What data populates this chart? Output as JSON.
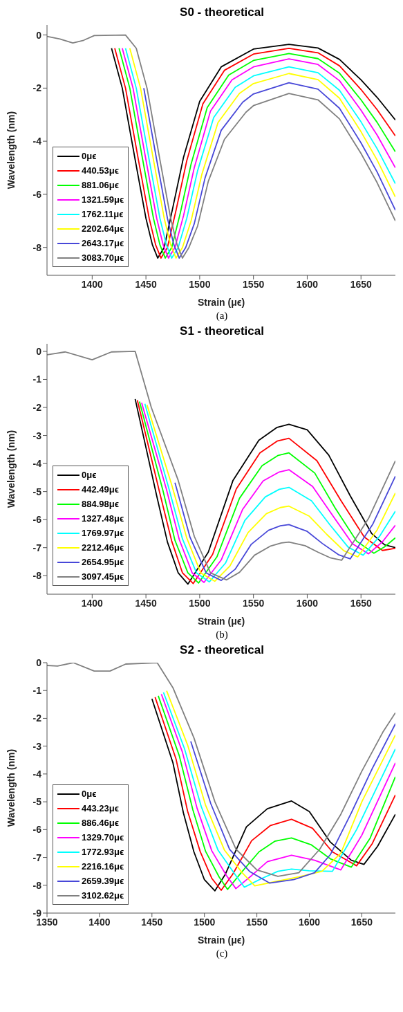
{
  "chart_data": [
    {
      "type": "line",
      "title": "S0 - theoretical",
      "xlabel": "Strain (μϵ)",
      "ylabel": "Wavelength (nm)",
      "annotations": [
        "(a)"
      ],
      "legend": "bottom left",
      "xlim": [
        1358,
        1682
      ],
      "xticks": [
        1400,
        1450,
        1500,
        1550,
        1600,
        1650
      ],
      "ylim": [
        -9.05,
        0.38
      ],
      "yticks": [
        -8,
        -6,
        -4,
        -2,
        0
      ],
      "series": [
        {
          "name": "0μϵ",
          "color": "#000000",
          "x": [
            1418,
            1428,
            1440,
            1450,
            1456,
            1461,
            1467,
            1475,
            1485,
            1500,
            1520,
            1550,
            1583,
            1610,
            1630,
            1650,
            1665,
            1682
          ],
          "values": [
            -0.5,
            -2,
            -4.7,
            -6.9,
            -7.9,
            -8.4,
            -8,
            -6.5,
            -4.6,
            -2.5,
            -1.2,
            -0.53,
            -0.35,
            -0.49,
            -0.92,
            -1.69,
            -2.35,
            -3.2
          ]
        },
        {
          "name": "440.53μϵ",
          "color": "#ff0000",
          "x": [
            1421,
            1431,
            1443,
            1453,
            1459,
            1464,
            1470,
            1478,
            1488,
            1503,
            1523,
            1550,
            1583,
            1610,
            1630,
            1650,
            1665,
            1682
          ],
          "values": [
            -0.5,
            -2,
            -4.7,
            -6.9,
            -7.9,
            -8.4,
            -8,
            -6.6,
            -4.73,
            -2.59,
            -1.33,
            -0.72,
            -0.5,
            -0.67,
            -1.16,
            -2.05,
            -2.81,
            -3.8
          ]
        },
        {
          "name": "881.06μϵ",
          "color": "#00ff00",
          "x": [
            1425,
            1435,
            1447,
            1457,
            1463,
            1468,
            1474,
            1482,
            1492,
            1507,
            1527,
            1550,
            1583,
            1610,
            1630,
            1650,
            1665,
            1682
          ],
          "values": [
            -0.5,
            -2,
            -4.7,
            -6.9,
            -7.9,
            -8.4,
            -8,
            -6.7,
            -4.86,
            -2.73,
            -1.51,
            -0.96,
            -0.7,
            -0.89,
            -1.44,
            -2.44,
            -3.29,
            -4.4
          ]
        },
        {
          "name": "1321.59μϵ",
          "color": "#ff00ff",
          "x": [
            1428,
            1438,
            1450,
            1460,
            1466,
            1471,
            1477,
            1485,
            1495,
            1510,
            1530,
            1550,
            1583,
            1610,
            1630,
            1650,
            1665,
            1682
          ],
          "values": [
            -0.5,
            -2,
            -4.7,
            -6.9,
            -7.9,
            -8.4,
            -8,
            -6.8,
            -4.99,
            -2.87,
            -1.69,
            -1.2,
            -0.9,
            -1.11,
            -1.72,
            -2.83,
            -3.77,
            -5
          ]
        },
        {
          "name": "1762.11μϵ",
          "color": "#00ffff",
          "x": [
            1431,
            1441,
            1453,
            1463,
            1469,
            1474,
            1480,
            1488,
            1498,
            1513,
            1533,
            1550,
            1583,
            1610,
            1630,
            1650,
            1665,
            1682
          ],
          "values": [
            -0.5,
            -2,
            -4.7,
            -6.9,
            -7.9,
            -8.4,
            -8,
            -6.9,
            -5.12,
            -3.11,
            -1.97,
            -1.54,
            -1.2,
            -1.42,
            -2.08,
            -3.27,
            -4.28,
            -5.6
          ]
        },
        {
          "name": "2202.64μϵ",
          "color": "#ffff00",
          "x": [
            1435,
            1445,
            1457,
            1467,
            1473,
            1478,
            1484,
            1492,
            1502,
            1517,
            1537,
            1550,
            1583,
            1610,
            1630,
            1650,
            1665,
            1682
          ],
          "values": [
            -0.5,
            -2,
            -4.7,
            -6.9,
            -7.9,
            -8.4,
            -8,
            -7,
            -5.25,
            -3.3,
            -2.2,
            -1.83,
            -1.45,
            -1.68,
            -2.38,
            -3.64,
            -4.71,
            -6.1
          ]
        },
        {
          "name": "2643.17μϵ",
          "color": "#4848d8",
          "x": [
            1448,
            1460,
            1470,
            1476,
            1481,
            1487,
            1495,
            1505,
            1520,
            1540,
            1550,
            1583,
            1610,
            1630,
            1650,
            1665,
            1682
          ],
          "values": [
            -2,
            -4.7,
            -6.9,
            -7.9,
            -8.4,
            -8,
            -7.1,
            -5.38,
            -3.59,
            -2.53,
            -2.22,
            -1.8,
            -2.04,
            -2.76,
            -4.06,
            -5.16,
            -6.6
          ]
        },
        {
          "name": "3083.70μϵ",
          "color": "#808080",
          "x": [
            1358,
            1370,
            1382,
            1392,
            1402,
            1431,
            1441,
            1451,
            1463,
            1473,
            1479,
            1484,
            1490,
            1498,
            1508,
            1523,
            1543,
            1550,
            1583,
            1610,
            1630,
            1650,
            1665,
            1682
          ],
          "values": [
            -0.05,
            -0.15,
            -0.3,
            -0.2,
            -0.02,
            0,
            -0.5,
            -2,
            -4.7,
            -6.9,
            -7.9,
            -8.4,
            -8,
            -7.2,
            -5.51,
            -3.93,
            -2.91,
            -2.66,
            -2.2,
            -2.44,
            -3.16,
            -4.46,
            -5.56,
            -7
          ]
        }
      ]
    },
    {
      "type": "line",
      "title": "S1 - theoretical",
      "xlabel": "Strain (μϵ)",
      "ylabel": "Wavelength (nm)",
      "annotations": [
        "(b)"
      ],
      "legend": "bottom left",
      "xlim": [
        1358,
        1682
      ],
      "xticks": [
        1400,
        1450,
        1500,
        1550,
        1600,
        1650
      ],
      "ylim": [
        -8.66,
        0.27
      ],
      "yticks": [
        -8,
        -7,
        -6,
        -5,
        -4,
        -3,
        -2,
        -1,
        0
      ],
      "series": [
        {
          "name": "0μϵ",
          "color": "#000000",
          "x": [
            1440,
            1460,
            1470,
            1480,
            1489,
            1508,
            1531,
            1555,
            1572,
            1583,
            1600,
            1620,
            1640,
            1660,
            1672,
            1682
          ],
          "values": [
            -1.7,
            -5.15,
            -6.8,
            -7.9,
            -8.3,
            -7.16,
            -4.6,
            -3.17,
            -2.71,
            -2.6,
            -2.8,
            -3.7,
            -5.15,
            -6.5,
            -6.9,
            -7
          ]
        },
        {
          "name": "442.49μϵ",
          "color": "#ff0000",
          "x": [
            1442,
            1463,
            1474,
            1484,
            1494,
            1512,
            1534,
            1556,
            1572,
            1583,
            1609,
            1631,
            1653,
            1670,
            1682
          ],
          "values": [
            -1.74,
            -5.07,
            -6.77,
            -7.9,
            -8.28,
            -7.24,
            -4.91,
            -3.62,
            -3.2,
            -3.1,
            -3.9,
            -5.3,
            -6.62,
            -7.1,
            -7.02
          ]
        },
        {
          "name": "884.98μϵ",
          "color": "#00ff00",
          "x": [
            1444,
            1466,
            1477,
            1489,
            1499,
            1516,
            1537,
            1558,
            1573,
            1583,
            1607,
            1626,
            1646,
            1662,
            1672,
            1682
          ],
          "values": [
            -1.79,
            -4.99,
            -6.74,
            -7.9,
            -8.26,
            -7.33,
            -5.24,
            -4.08,
            -3.71,
            -3.62,
            -4.34,
            -5.59,
            -6.77,
            -7.2,
            -6.97,
            -6.65
          ]
        },
        {
          "name": "1327.48μϵ",
          "color": "#ff00ff",
          "x": [
            1446,
            1469,
            1481,
            1493,
            1504,
            1520,
            1540,
            1559,
            1574,
            1583,
            1605,
            1624,
            1642,
            1657,
            1670,
            1682
          ],
          "values": [
            -1.83,
            -4.91,
            -6.71,
            -7.9,
            -8.24,
            -7.44,
            -5.63,
            -4.62,
            -4.3,
            -4.22,
            -4.82,
            -5.87,
            -6.86,
            -7.22,
            -6.79,
            -6.2
          ]
        },
        {
          "name": "1769.97μϵ",
          "color": "#00ffff",
          "x": [
            1449,
            1471,
            1484,
            1497,
            1509,
            1524,
            1542,
            1561,
            1574,
            1583,
            1604,
            1621,
            1638,
            1652,
            1667,
            1682
          ],
          "values": [
            -1.87,
            -4.84,
            -6.69,
            -7.9,
            -8.22,
            -7.55,
            -6.03,
            -5.19,
            -4.92,
            -4.85,
            -5.33,
            -6.18,
            -6.98,
            -7.27,
            -6.61,
            -5.7
          ]
        },
        {
          "name": "2212.46μϵ",
          "color": "#ffff00",
          "x": [
            1451,
            1474,
            1488,
            1501,
            1514,
            1528,
            1545,
            1562,
            1575,
            1583,
            1602,
            1618,
            1634,
            1647,
            1665,
            1682
          ],
          "values": [
            -1.91,
            -4.76,
            -6.66,
            -7.9,
            -8.2,
            -7.66,
            -6.46,
            -5.79,
            -5.57,
            -5.52,
            -5.88,
            -6.52,
            -7.11,
            -7.33,
            -6.37,
            -5.05
          ]
        },
        {
          "name": "2654.95μϵ",
          "color": "#4848d8",
          "x": [
            1477,
            1491,
            1506,
            1520,
            1533,
            1548,
            1564,
            1575,
            1583,
            1600,
            1614,
            1629,
            1640,
            1661,
            1682
          ],
          "values": [
            -4.68,
            -6.63,
            -7.9,
            -8.17,
            -7.77,
            -6.88,
            -6.38,
            -6.22,
            -6.18,
            -6.42,
            -6.85,
            -7.25,
            -7.4,
            -6.16,
            -4.45
          ]
        },
        {
          "name": "3097.45μϵ",
          "color": "#808080",
          "x": [
            1358,
            1375,
            1400,
            1418,
            1440,
            1455,
            1480,
            1495,
            1510,
            1525,
            1537,
            1551,
            1566,
            1576,
            1583,
            1598,
            1610,
            1622,
            1632,
            1657,
            1682
          ],
          "values": [
            -0.12,
            -0.02,
            -0.3,
            -0.02,
            0,
            -2,
            -4.6,
            -6.6,
            -7.9,
            -8.15,
            -7.88,
            -7.27,
            -6.94,
            -6.83,
            -6.8,
            -6.93,
            -7.16,
            -7.37,
            -7.45,
            -5.96,
            -3.9
          ]
        }
      ]
    },
    {
      "type": "line",
      "title": "S2 - theoretical",
      "xlabel": "Strain (μϵ)",
      "ylabel": "Wavelength (nm)",
      "annotations": [
        "(c)"
      ],
      "legend": "bottom left",
      "xlim": [
        1350,
        1682
      ],
      "xticks": [
        1350,
        1400,
        1450,
        1500,
        1550,
        1600,
        1650
      ],
      "ylim": [
        -9,
        0
      ],
      "yticks": [
        -9,
        -8,
        -7,
        -6,
        -5,
        -4,
        -3,
        -2,
        -1,
        0
      ],
      "series": [
        {
          "name": "0μϵ",
          "color": "#000000",
          "x": [
            1450,
            1470,
            1480,
            1490,
            1500,
            1510,
            1520,
            1540,
            1560,
            1583,
            1600,
            1620,
            1640,
            1652,
            1665,
            1682
          ],
          "values": [
            -1.3,
            -3.6,
            -5.4,
            -6.8,
            -7.8,
            -8.2,
            -7.6,
            -5.9,
            -5.25,
            -4.97,
            -5.35,
            -6.45,
            -7.1,
            -7.25,
            -6.6,
            -5.45
          ]
        },
        {
          "name": "443.23μϵ",
          "color": "#ff0000",
          "x": [
            1453,
            1473,
            1484,
            1496,
            1507,
            1516,
            1527,
            1545,
            1563,
            1583,
            1603,
            1622,
            1645,
            1660,
            1682
          ],
          "values": [
            -1.24,
            -3.47,
            -5.34,
            -6.79,
            -7.75,
            -8.18,
            -7.6,
            -6.4,
            -5.85,
            -5.63,
            -5.95,
            -6.8,
            -7.3,
            -6.5,
            -4.75
          ]
        },
        {
          "name": "886.46μϵ",
          "color": "#00ff00",
          "x": [
            1456,
            1476,
            1489,
            1501,
            1514,
            1522,
            1535,
            1552,
            1567,
            1583,
            1602,
            1620,
            1640,
            1658,
            1682
          ],
          "values": [
            -1.19,
            -3.34,
            -5.29,
            -6.77,
            -7.7,
            -8.15,
            -7.55,
            -6.8,
            -6.42,
            -6.3,
            -6.55,
            -7.05,
            -7.35,
            -6.3,
            -4.1
          ]
        },
        {
          "name": "1329.70μϵ",
          "color": "#ff00ff",
          "x": [
            1459,
            1479,
            1493,
            1507,
            1521,
            1530,
            1545,
            1560,
            1583,
            1605,
            1630,
            1650,
            1682
          ],
          "values": [
            -1.13,
            -3.21,
            -5.23,
            -6.76,
            -7.65,
            -8.12,
            -7.65,
            -7.15,
            -6.92,
            -7.1,
            -7.45,
            -6.2,
            -3.6
          ]
        },
        {
          "name": "1772.93μϵ",
          "color": "#00ffff",
          "x": [
            1461,
            1481,
            1497,
            1513,
            1529,
            1538,
            1555,
            1570,
            1583,
            1600,
            1622,
            1645,
            1682
          ],
          "values": [
            -1.07,
            -3.09,
            -5.17,
            -6.74,
            -7.6,
            -8.07,
            -7.75,
            -7.5,
            -7.42,
            -7.48,
            -7.5,
            -6,
            -3.1
          ]
        },
        {
          "name": "2216.16μϵ",
          "color": "#ffff00",
          "x": [
            1464,
            1484,
            1501,
            1519,
            1536,
            1548,
            1570,
            1590,
            1612,
            1630,
            1650,
            1682
          ],
          "values": [
            -1.01,
            -2.96,
            -5.11,
            -6.73,
            -7.55,
            -8.02,
            -7.85,
            -7.7,
            -7.5,
            -6.85,
            -5,
            -2.6
          ]
        },
        {
          "name": "2659.39μϵ",
          "color": "#4848d8",
          "x": [
            1487,
            1506,
            1524,
            1543,
            1562,
            1585,
            1605,
            1620,
            1640,
            1660,
            1682
          ],
          "values": [
            -2.83,
            -5.06,
            -6.71,
            -7.5,
            -7.92,
            -7.8,
            -7.55,
            -6.9,
            -5.4,
            -3.8,
            -2.2
          ]
        },
        {
          "name": "3102.62μϵ",
          "color": "#808080",
          "x": [
            1350,
            1360,
            1375,
            1395,
            1410,
            1425,
            1455,
            1470,
            1490,
            1510,
            1530,
            1550,
            1570,
            1590,
            1610,
            1630,
            1650,
            1670,
            1682
          ],
          "values": [
            -0.1,
            -0.12,
            0,
            -0.3,
            -0.3,
            -0.05,
            0,
            -0.9,
            -2.7,
            -5,
            -6.7,
            -7.45,
            -7.68,
            -7.55,
            -6.7,
            -5.45,
            -3.9,
            -2.5,
            -1.8
          ]
        }
      ]
    }
  ]
}
